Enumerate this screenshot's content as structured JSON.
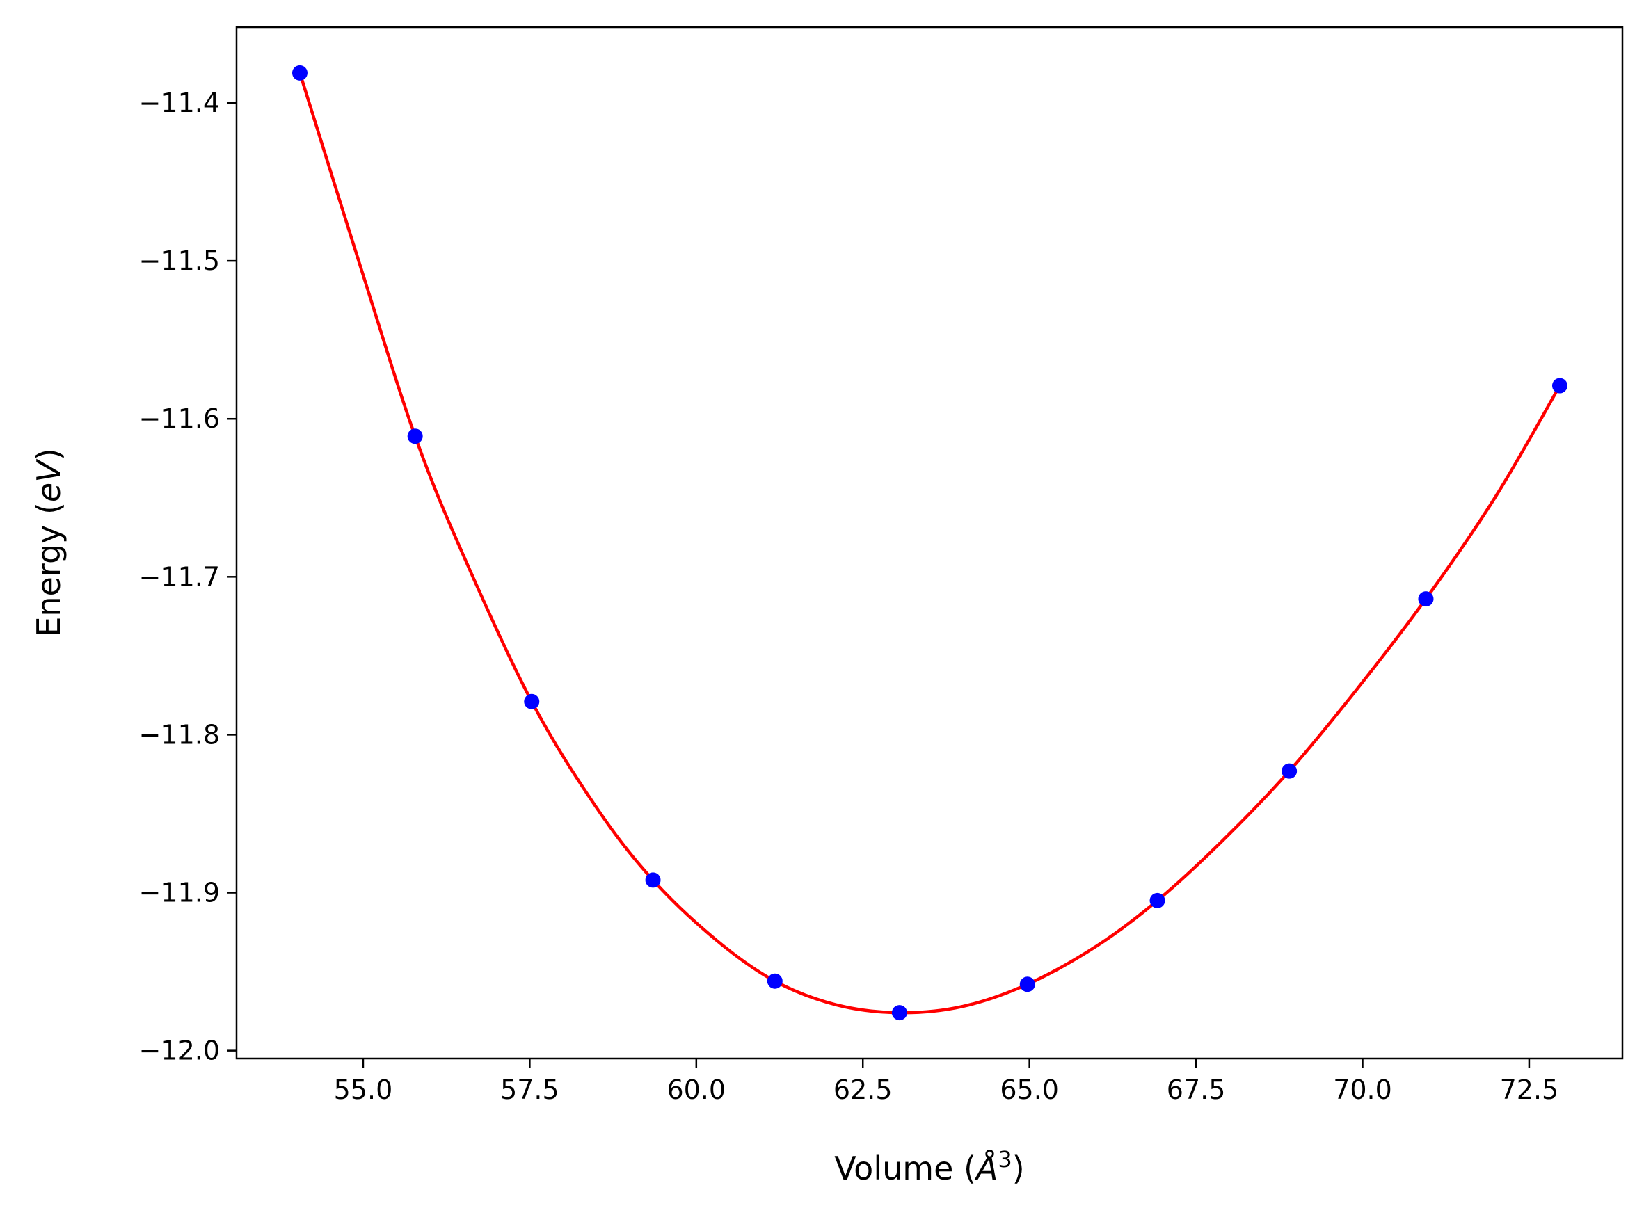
{
  "chart_data": {
    "type": "line",
    "xlabel_parts": {
      "pre": "Volume (",
      "italic": "Å",
      "sup": "3",
      "post": ")"
    },
    "ylabel_parts": {
      "pre": "Energy (",
      "italic": "eV",
      "post": ")"
    },
    "xlim": [
      53.1,
      73.9
    ],
    "ylim": [
      -12.005,
      -11.352
    ],
    "x_ticks": [
      55.0,
      57.5,
      60.0,
      62.5,
      65.0,
      67.5,
      70.0,
      72.5
    ],
    "x_tick_labels": [
      "55.0",
      "57.5",
      "60.0",
      "62.5",
      "65.0",
      "67.5",
      "70.0",
      "72.5"
    ],
    "y_ticks": [
      -11.4,
      -11.5,
      -11.6,
      -11.7,
      -11.8,
      -11.9,
      -12.0
    ],
    "y_tick_labels": [
      "−11.4",
      "−11.5",
      "−11.6",
      "−11.7",
      "−11.8",
      "−11.9",
      "−12.0"
    ],
    "grid": false,
    "series": [
      {
        "kind": "points",
        "color": "#0000ff",
        "x": [
          54.05,
          55.78,
          57.53,
          59.35,
          61.18,
          63.05,
          64.97,
          66.92,
          68.9,
          70.95,
          72.96
        ],
        "y": [
          -11.381,
          -11.611,
          -11.779,
          -11.892,
          -11.956,
          -11.976,
          -11.958,
          -11.905,
          -11.823,
          -11.714,
          -11.579
        ]
      },
      {
        "kind": "fit-curve",
        "color": "#ff0000",
        "x": [
          54.05,
          55.0,
          55.78,
          56.5,
          57.53,
          58.5,
          59.35,
          60.3,
          61.18,
          62.1,
          63.05,
          64.0,
          64.97,
          66.0,
          66.92,
          67.9,
          68.9,
          69.9,
          70.95,
          72.0,
          72.96
        ],
        "y": [
          -11.381,
          -11.509,
          -11.611,
          -11.686,
          -11.779,
          -11.846,
          -11.892,
          -11.93,
          -11.956,
          -11.971,
          -11.976,
          -11.972,
          -11.958,
          -11.934,
          -11.905,
          -11.867,
          -11.823,
          -11.772,
          -11.714,
          -11.649,
          -11.579
        ]
      }
    ]
  }
}
